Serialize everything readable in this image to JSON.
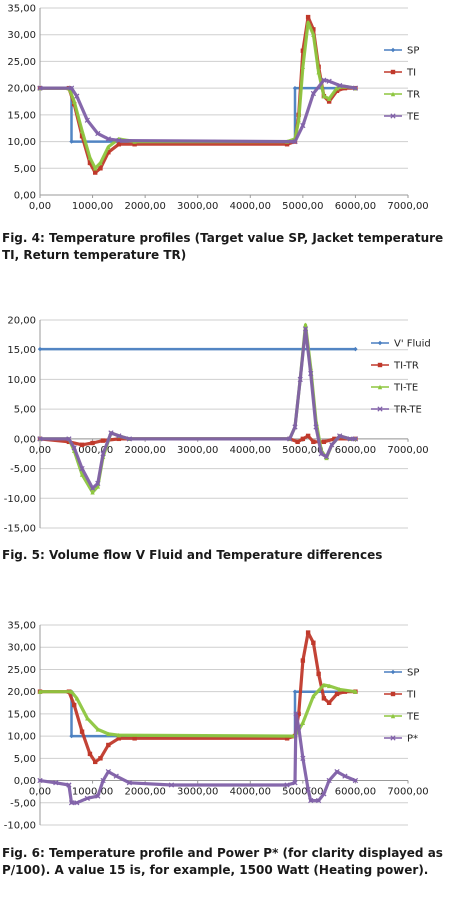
{
  "figures": [
    {
      "caption": "Fig. 4: Temperature profiles (Target value SP, Jacket temperature TI, Return temperature TR)",
      "chart_data": {
        "type": "line",
        "xlim": [
          0,
          7000
        ],
        "ylim": [
          0,
          35
        ],
        "xticks": [
          "0,00",
          "1000,00",
          "2000,00",
          "3000,00",
          "4000,00",
          "5000,00",
          "6000,00",
          "7000,00"
        ],
        "yticks": [
          "0,00",
          "5,00",
          "10,00",
          "15,00",
          "20,00",
          "25,00",
          "30,00",
          "35,00"
        ],
        "grid": true,
        "legend_position": "right",
        "series": [
          {
            "name": "SP",
            "color": "#4a7fc1",
            "marker": "diamond",
            "points": [
              [
                0,
                20
              ],
              [
                600,
                20
              ],
              [
                600,
                10
              ],
              [
                4850,
                10
              ],
              [
                4850,
                20
              ],
              [
                6000,
                20
              ]
            ]
          },
          {
            "name": "TI",
            "color": "#c0392b",
            "marker": "square",
            "points": [
              [
                0,
                20
              ],
              [
                550,
                20
              ],
              [
                650,
                17
              ],
              [
                800,
                11
              ],
              [
                950,
                6
              ],
              [
                1050,
                4.2
              ],
              [
                1150,
                5
              ],
              [
                1300,
                8
              ],
              [
                1500,
                9.5
              ],
              [
                1800,
                9.5
              ],
              [
                4700,
                9.5
              ],
              [
                4850,
                10
              ],
              [
                4920,
                15
              ],
              [
                5000,
                27
              ],
              [
                5100,
                33.3
              ],
              [
                5200,
                31
              ],
              [
                5300,
                24
              ],
              [
                5400,
                18.5
              ],
              [
                5500,
                17.5
              ],
              [
                5650,
                19.5
              ],
              [
                5800,
                20
              ],
              [
                6000,
                20
              ]
            ]
          },
          {
            "name": "TR",
            "color": "#8dc63f",
            "marker": "triangle",
            "points": [
              [
                0,
                20
              ],
              [
                550,
                20
              ],
              [
                650,
                17.5
              ],
              [
                800,
                12
              ],
              [
                950,
                7
              ],
              [
                1050,
                5
              ],
              [
                1150,
                6
              ],
              [
                1300,
                9
              ],
              [
                1500,
                10.5
              ],
              [
                1800,
                10
              ],
              [
                4700,
                10
              ],
              [
                4850,
                10.5
              ],
              [
                4920,
                14
              ],
              [
                5000,
                24
              ],
              [
                5100,
                32.3
              ],
              [
                5200,
                30
              ],
              [
                5300,
                23
              ],
              [
                5400,
                18.5
              ],
              [
                5500,
                18
              ],
              [
                5650,
                20
              ],
              [
                5800,
                20.3
              ],
              [
                6000,
                20
              ]
            ]
          },
          {
            "name": "TE",
            "color": "#8060a8",
            "marker": "x",
            "points": [
              [
                0,
                20
              ],
              [
                600,
                20
              ],
              [
                700,
                18.5
              ],
              [
                900,
                14
              ],
              [
                1100,
                11.5
              ],
              [
                1300,
                10.5
              ],
              [
                1500,
                10.2
              ],
              [
                4850,
                10
              ],
              [
                5000,
                13
              ],
              [
                5200,
                19
              ],
              [
                5400,
                21.5
              ],
              [
                5500,
                21.3
              ],
              [
                5700,
                20.5
              ],
              [
                6000,
                20
              ]
            ]
          }
        ]
      }
    },
    {
      "caption": "Fig. 5: Volume flow V Fluid and Temperature differences",
      "chart_data": {
        "type": "line",
        "xlim": [
          0,
          7000
        ],
        "ylim": [
          -15,
          20
        ],
        "xticks": [
          "0,00",
          "1000,00",
          "2000,00",
          "3000,00",
          "4000,00",
          "5000,00",
          "6000,00",
          "7000,00"
        ],
        "yticks": [
          "-15,00",
          "-10,00",
          "-5,00",
          "0,00",
          "5,00",
          "10,00",
          "15,00",
          "20,00"
        ],
        "grid": true,
        "legend_position": "right",
        "series": [
          {
            "name": "V' Fluid",
            "color": "#4a7fc1",
            "marker": "diamond",
            "points": [
              [
                0,
                15.1
              ],
              [
                6000,
                15.1
              ]
            ]
          },
          {
            "name": "TI-TR",
            "color": "#c0392b",
            "marker": "square",
            "points": [
              [
                0,
                0
              ],
              [
                550,
                -0.5
              ],
              [
                800,
                -1
              ],
              [
                1000,
                -0.7
              ],
              [
                1200,
                -0.3
              ],
              [
                1500,
                0
              ],
              [
                4750,
                0
              ],
              [
                4900,
                -0.5
              ],
              [
                5000,
                0
              ],
              [
                5100,
                0.5
              ],
              [
                5200,
                -0.5
              ],
              [
                5400,
                -0.5
              ],
              [
                5600,
                0
              ],
              [
                6000,
                0
              ]
            ]
          },
          {
            "name": "TI-TE",
            "color": "#8dc63f",
            "marker": "triangle",
            "points": [
              [
                0,
                0
              ],
              [
                550,
                0
              ],
              [
                650,
                -2
              ],
              [
                800,
                -6
              ],
              [
                1000,
                -9
              ],
              [
                1100,
                -8
              ],
              [
                1200,
                -3
              ],
              [
                1350,
                1
              ],
              [
                1500,
                0.5
              ],
              [
                1700,
                0
              ],
              [
                4750,
                0
              ],
              [
                4850,
                2
              ],
              [
                4950,
                10
              ],
              [
                5050,
                19.2
              ],
              [
                5150,
                12
              ],
              [
                5250,
                3
              ],
              [
                5350,
                -2
              ],
              [
                5450,
                -3.2
              ],
              [
                5550,
                -1
              ],
              [
                5700,
                0.5
              ],
              [
                5900,
                0
              ],
              [
                6000,
                0
              ]
            ]
          },
          {
            "name": "TR-TE",
            "color": "#8060a8",
            "marker": "x",
            "points": [
              [
                0,
                0
              ],
              [
                550,
                0
              ],
              [
                650,
                -1.5
              ],
              [
                800,
                -5
              ],
              [
                1000,
                -8.3
              ],
              [
                1100,
                -7.5
              ],
              [
                1200,
                -2.5
              ],
              [
                1350,
                1
              ],
              [
                1500,
                0.5
              ],
              [
                1700,
                0
              ],
              [
                4750,
                0
              ],
              [
                4850,
                2
              ],
              [
                4950,
                10
              ],
              [
                5050,
                18.5
              ],
              [
                5150,
                11
              ],
              [
                5250,
                2
              ],
              [
                5350,
                -2.5
              ],
              [
                5450,
                -3
              ],
              [
                5550,
                -1
              ],
              [
                5700,
                0.5
              ],
              [
                5900,
                0
              ],
              [
                6000,
                0
              ]
            ]
          }
        ]
      }
    },
    {
      "caption": "Fig. 6: Temperature profile and Power P* (for clarity displayed as P/100). A value 15 is, for example, 1500 Watt (Heating power).",
      "chart_data": {
        "type": "line",
        "xlim": [
          0,
          7000
        ],
        "ylim": [
          -10,
          35
        ],
        "xticks": [
          "0,00",
          "1000,00",
          "2000,00",
          "3000,00",
          "4000,00",
          "5000,00",
          "6000,00",
          "7000,00"
        ],
        "yticks": [
          "-10,00",
          "-5,00",
          "0,00",
          "5,00",
          "10,00",
          "15,00",
          "20,00",
          "25,00",
          "30,00",
          "35,00"
        ],
        "grid": true,
        "legend_position": "right",
        "series": [
          {
            "name": "SP",
            "color": "#4a7fc1",
            "marker": "diamond",
            "points": [
              [
                0,
                20
              ],
              [
                600,
                20
              ],
              [
                600,
                10
              ],
              [
                4850,
                10
              ],
              [
                4850,
                20
              ],
              [
                6000,
                20
              ]
            ]
          },
          {
            "name": "TI",
            "color": "#c0392b",
            "marker": "square",
            "points": [
              [
                0,
                20
              ],
              [
                550,
                20
              ],
              [
                650,
                17
              ],
              [
                800,
                11
              ],
              [
                950,
                6
              ],
              [
                1050,
                4.2
              ],
              [
                1150,
                5
              ],
              [
                1300,
                8
              ],
              [
                1500,
                9.5
              ],
              [
                1800,
                9.5
              ],
              [
                4700,
                9.5
              ],
              [
                4850,
                10
              ],
              [
                4920,
                15
              ],
              [
                5000,
                27
              ],
              [
                5100,
                33.3
              ],
              [
                5200,
                31
              ],
              [
                5300,
                24
              ],
              [
                5400,
                18.5
              ],
              [
                5500,
                17.5
              ],
              [
                5650,
                19.5
              ],
              [
                5800,
                20
              ],
              [
                6000,
                20
              ]
            ]
          },
          {
            "name": "TE",
            "color": "#8dc63f",
            "marker": "triangle",
            "points": [
              [
                0,
                20
              ],
              [
                600,
                20
              ],
              [
                700,
                18.5
              ],
              [
                900,
                14
              ],
              [
                1100,
                11.5
              ],
              [
                1300,
                10.5
              ],
              [
                1500,
                10.2
              ],
              [
                4850,
                10
              ],
              [
                5000,
                13
              ],
              [
                5200,
                19
              ],
              [
                5400,
                21.5
              ],
              [
                5500,
                21.3
              ],
              [
                5700,
                20.5
              ],
              [
                6000,
                20
              ]
            ]
          },
          {
            "name": "P*",
            "color": "#8060a8",
            "marker": "x",
            "points": [
              [
                0,
                0
              ],
              [
                300,
                -0.5
              ],
              [
                550,
                -1
              ],
              [
                600,
                -5
              ],
              [
                700,
                -5
              ],
              [
                900,
                -4
              ],
              [
                1100,
                -3.5
              ],
              [
                1200,
                0
              ],
              [
                1300,
                2
              ],
              [
                1450,
                1
              ],
              [
                1700,
                -0.5
              ],
              [
                2500,
                -1
              ],
              [
                4700,
                -1
              ],
              [
                4850,
                -0.5
              ],
              [
                4870,
                15
              ],
              [
                4920,
                12
              ],
              [
                5000,
                5
              ],
              [
                5100,
                -2
              ],
              [
                5150,
                -4.5
              ],
              [
                5300,
                -4.5
              ],
              [
                5400,
                -3
              ],
              [
                5500,
                0
              ],
              [
                5650,
                2
              ],
              [
                5800,
                1
              ],
              [
                6000,
                0
              ]
            ]
          }
        ]
      }
    }
  ]
}
